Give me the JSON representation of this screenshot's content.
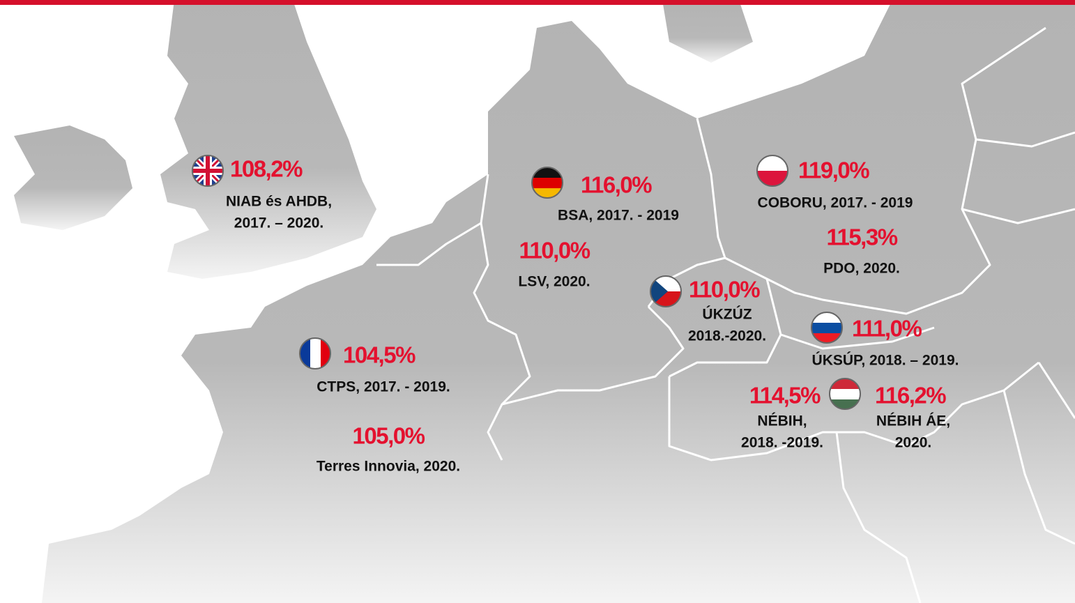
{
  "labels": [
    {
      "value": "108,2%",
      "source": [
        "NIAB és AHDB,",
        "2017. – 2020."
      ]
    },
    {
      "value": "116,0%",
      "source": [
        "BSA, 2017. - 2019"
      ]
    },
    {
      "value": "110,0%",
      "source": [
        "LSV, 2020."
      ]
    },
    {
      "value": "110,0%",
      "source": [
        "ÚKZÚZ",
        "2018.-2020."
      ]
    },
    {
      "value": "119,0%",
      "source": [
        "COBORU, 2017. - 2019"
      ]
    },
    {
      "value": "115,3%",
      "source": [
        "PDO, 2020."
      ]
    },
    {
      "value": "111,0%",
      "source": [
        "ÚKSÚP, 2018. – 2019."
      ]
    },
    {
      "value": "104,5%",
      "source": [
        "CTPS, 2017. - 2019."
      ]
    },
    {
      "value": "105,0%",
      "source": [
        "Terres Innovia, 2020."
      ]
    },
    {
      "value": "114,5%",
      "source": [
        "NÉBIH,",
        "2018. -2019."
      ]
    },
    {
      "value": "116,2%",
      "source": [
        "NÉBIH ÁE,",
        "2020."
      ]
    }
  ]
}
